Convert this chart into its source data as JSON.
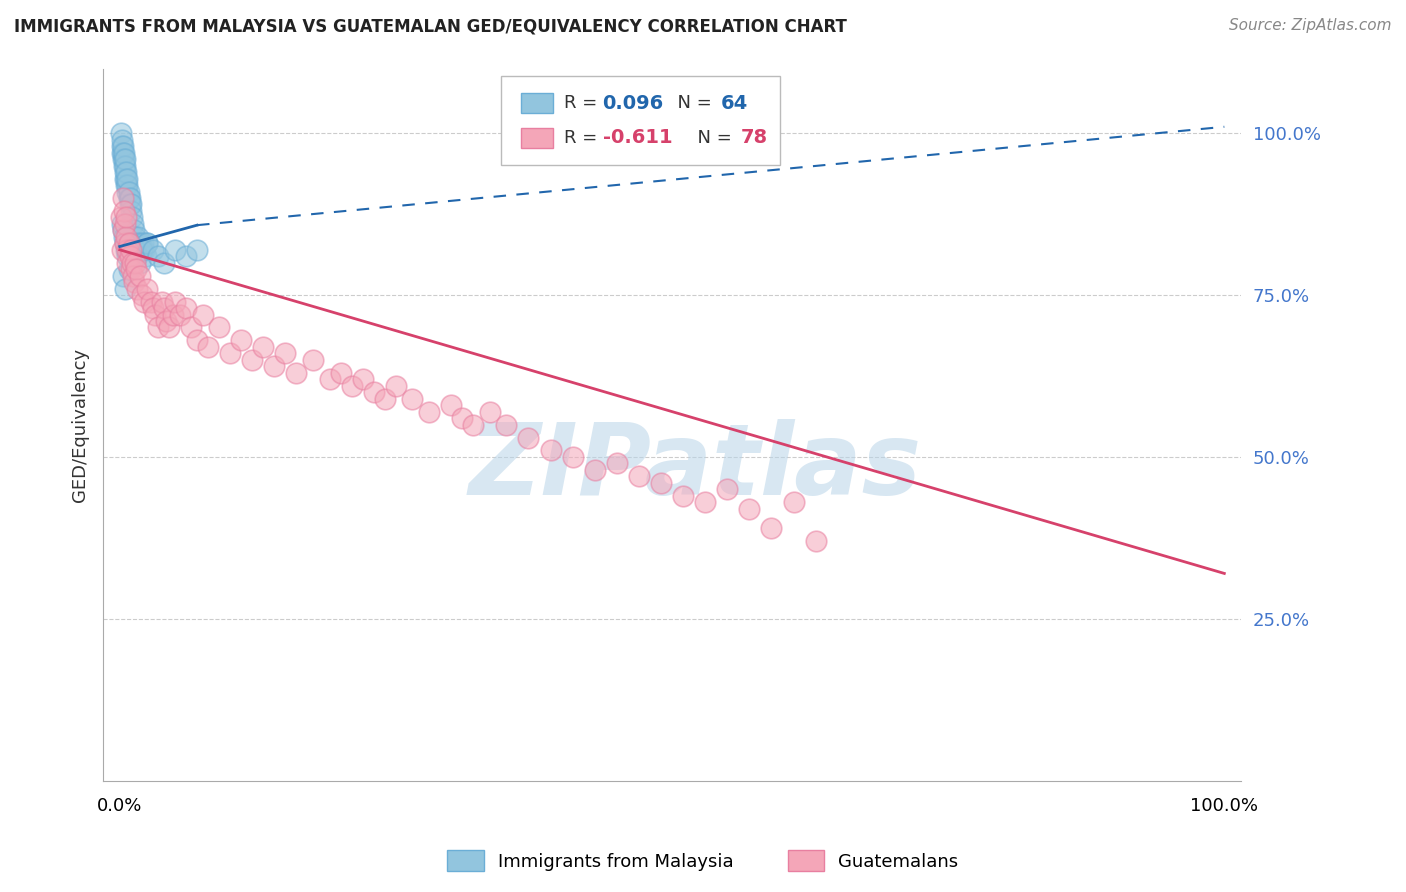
{
  "title": "IMMIGRANTS FROM MALAYSIA VS GUATEMALAN GED/EQUIVALENCY CORRELATION CHART",
  "source": "Source: ZipAtlas.com",
  "ylabel": "GED/Equivalency",
  "y_tick_labels": [
    "25.0%",
    "50.0%",
    "75.0%",
    "100.0%"
  ],
  "y_tick_values": [
    0.25,
    0.5,
    0.75,
    1.0
  ],
  "x_tick_labels": [
    "0.0%",
    "100.0%"
  ],
  "x_tick_values": [
    0.0,
    1.0
  ],
  "legend_label1": "Immigrants from Malaysia",
  "legend_label2": "Guatemalans",
  "blue_color": "#92c5de",
  "pink_color": "#f4a6b8",
  "blue_edge_color": "#6baed6",
  "pink_edge_color": "#e87fa0",
  "blue_line_color": "#2166ac",
  "pink_line_color": "#d6416b",
  "blue_r": 0.096,
  "blue_n": 64,
  "pink_r": -0.611,
  "pink_n": 78,
  "blue_scatter_x": [
    0.001,
    0.002,
    0.002,
    0.002,
    0.003,
    0.003,
    0.003,
    0.004,
    0.004,
    0.004,
    0.005,
    0.005,
    0.005,
    0.005,
    0.006,
    0.006,
    0.006,
    0.007,
    0.007,
    0.007,
    0.008,
    0.008,
    0.009,
    0.009,
    0.01,
    0.01,
    0.011,
    0.012,
    0.013,
    0.014,
    0.015,
    0.016,
    0.017,
    0.018,
    0.019,
    0.02,
    0.021,
    0.022,
    0.024,
    0.025,
    0.002,
    0.003,
    0.004,
    0.005,
    0.006,
    0.007,
    0.008,
    0.009,
    0.01,
    0.012,
    0.014,
    0.016,
    0.018,
    0.02,
    0.025,
    0.03,
    0.035,
    0.04,
    0.05,
    0.06,
    0.07,
    0.003,
    0.005,
    0.008
  ],
  "blue_scatter_y": [
    1.0,
    0.98,
    0.97,
    0.99,
    0.96,
    0.97,
    0.98,
    0.95,
    0.96,
    0.97,
    0.93,
    0.94,
    0.95,
    0.96,
    0.92,
    0.93,
    0.94,
    0.91,
    0.92,
    0.93,
    0.9,
    0.91,
    0.89,
    0.9,
    0.88,
    0.89,
    0.87,
    0.86,
    0.85,
    0.84,
    0.83,
    0.83,
    0.84,
    0.83,
    0.82,
    0.82,
    0.83,
    0.82,
    0.81,
    0.83,
    0.86,
    0.85,
    0.84,
    0.83,
    0.82,
    0.81,
    0.82,
    0.83,
    0.82,
    0.81,
    0.82,
    0.81,
    0.8,
    0.82,
    0.83,
    0.82,
    0.81,
    0.8,
    0.82,
    0.81,
    0.82,
    0.78,
    0.76,
    0.79
  ],
  "pink_scatter_x": [
    0.001,
    0.002,
    0.003,
    0.003,
    0.004,
    0.005,
    0.005,
    0.006,
    0.006,
    0.007,
    0.007,
    0.008,
    0.009,
    0.01,
    0.01,
    0.011,
    0.012,
    0.013,
    0.014,
    0.015,
    0.016,
    0.018,
    0.02,
    0.022,
    0.025,
    0.028,
    0.03,
    0.032,
    0.035,
    0.038,
    0.04,
    0.042,
    0.045,
    0.048,
    0.05,
    0.055,
    0.06,
    0.065,
    0.07,
    0.075,
    0.08,
    0.09,
    0.1,
    0.11,
    0.12,
    0.13,
    0.14,
    0.15,
    0.16,
    0.175,
    0.19,
    0.2,
    0.21,
    0.22,
    0.23,
    0.24,
    0.25,
    0.265,
    0.28,
    0.3,
    0.31,
    0.32,
    0.335,
    0.35,
    0.37,
    0.39,
    0.41,
    0.43,
    0.45,
    0.47,
    0.49,
    0.51,
    0.53,
    0.55,
    0.57,
    0.59,
    0.61,
    0.63
  ],
  "pink_scatter_y": [
    0.87,
    0.82,
    0.9,
    0.85,
    0.88,
    0.83,
    0.86,
    0.84,
    0.87,
    0.82,
    0.8,
    0.83,
    0.81,
    0.82,
    0.79,
    0.8,
    0.78,
    0.77,
    0.8,
    0.79,
    0.76,
    0.78,
    0.75,
    0.74,
    0.76,
    0.74,
    0.73,
    0.72,
    0.7,
    0.74,
    0.73,
    0.71,
    0.7,
    0.72,
    0.74,
    0.72,
    0.73,
    0.7,
    0.68,
    0.72,
    0.67,
    0.7,
    0.66,
    0.68,
    0.65,
    0.67,
    0.64,
    0.66,
    0.63,
    0.65,
    0.62,
    0.63,
    0.61,
    0.62,
    0.6,
    0.59,
    0.61,
    0.59,
    0.57,
    0.58,
    0.56,
    0.55,
    0.57,
    0.55,
    0.53,
    0.51,
    0.5,
    0.48,
    0.49,
    0.47,
    0.46,
    0.44,
    0.43,
    0.45,
    0.42,
    0.39,
    0.43,
    0.37
  ],
  "blue_line_x": [
    0.0,
    0.07,
    1.0
  ],
  "blue_line_y_start": 0.825,
  "blue_line_y_mid": 0.858,
  "blue_line_y_end": 1.01,
  "pink_line_x_start": 0.0,
  "pink_line_x_end": 1.0,
  "pink_line_y_start": 0.82,
  "pink_line_y_end": 0.32,
  "watermark_text": "ZIPatlas",
  "background_color": "#ffffff",
  "grid_color": "#cccccc",
  "right_tick_color": "#4477cc"
}
